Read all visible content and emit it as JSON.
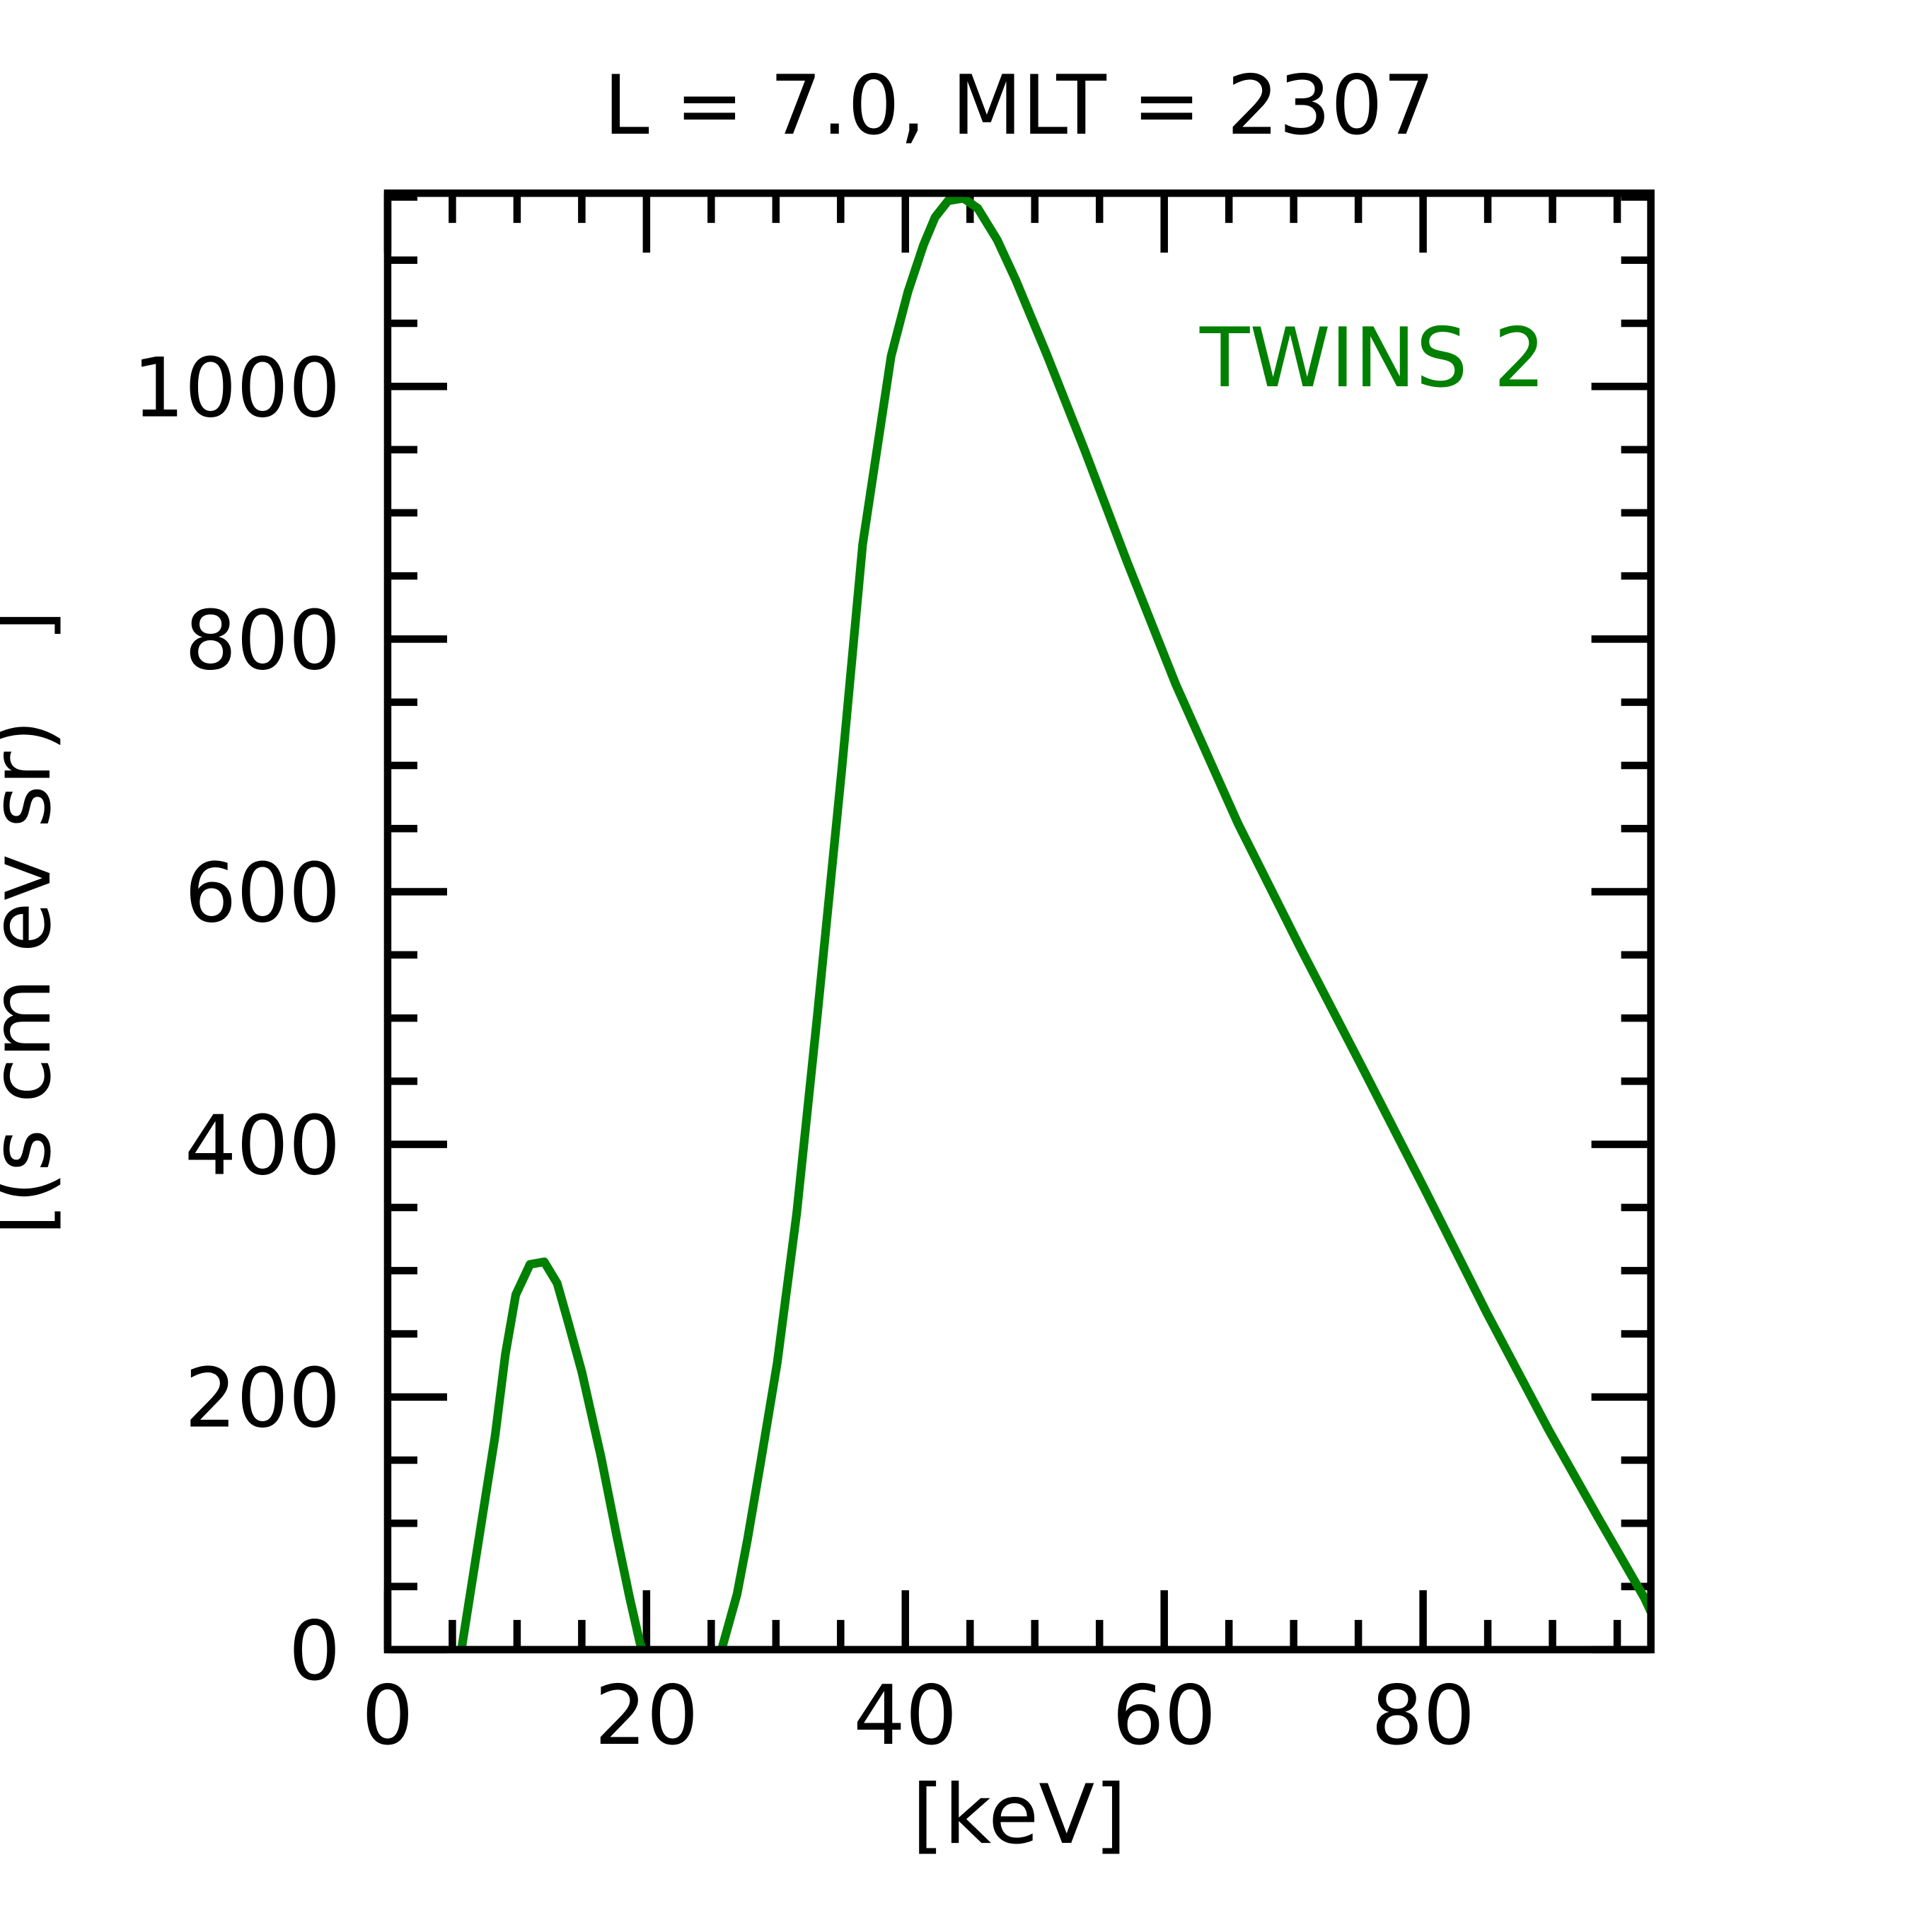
{
  "chart_data": {
    "type": "line",
    "title": "L =  7.0, MLT = 2307",
    "xlabel": "[keV]",
    "ylabel": "[(s cm ev sr)   ]",
    "xlim": [
      0,
      97.6
    ],
    "ylim": [
      0,
      1153
    ],
    "xticks": [
      0,
      20,
      40,
      60,
      80
    ],
    "xtick_labels": [
      "0",
      "20",
      "40",
      "60",
      "80"
    ],
    "yticks": [
      0,
      200,
      400,
      600,
      800,
      1000
    ],
    "ytick_labels": [
      "0",
      "200",
      "400",
      "600",
      "800",
      "1000"
    ],
    "x_minor_step": 5,
    "y_minor_step": 50,
    "grid": false,
    "legend_position": "top-right",
    "series": [
      {
        "name": "TWINS 2",
        "color": "#008000",
        "segments": [
          [
            [
              5.7,
              0
            ],
            [
              8.3,
              169
            ],
            [
              9.1,
              234
            ],
            [
              9.9,
              281
            ],
            [
              11.0,
              305
            ],
            [
              12.1,
              307
            ],
            [
              13.1,
              290
            ],
            [
              13.9,
              261
            ],
            [
              15.0,
              220
            ],
            [
              16.5,
              152
            ],
            [
              17.7,
              90
            ],
            [
              18.7,
              41
            ],
            [
              19.5,
              5
            ],
            [
              19.7,
              0
            ]
          ],
          [
            [
              25.8,
              0
            ],
            [
              27.0,
              44
            ],
            [
              27.8,
              87
            ],
            [
              28.8,
              147
            ],
            [
              30.1,
              227
            ],
            [
              31.6,
              345
            ],
            [
              33.2,
              502
            ],
            [
              35.1,
              698
            ],
            [
              36.7,
              875
            ],
            [
              38.0,
              963
            ],
            [
              38.9,
              1024
            ],
            [
              40.2,
              1075
            ],
            [
              41.4,
              1112
            ],
            [
              42.3,
              1134
            ],
            [
              43.3,
              1147
            ],
            [
              44.5,
              1149
            ],
            [
              45.6,
              1141
            ],
            [
              47.1,
              1116
            ],
            [
              48.5,
              1085
            ],
            [
              50.9,
              1026
            ],
            [
              53.8,
              951
            ],
            [
              57.1,
              862
            ],
            [
              60.9,
              764
            ],
            [
              65.7,
              654
            ],
            [
              70.5,
              556
            ],
            [
              75.3,
              461
            ],
            [
              80.1,
              365
            ],
            [
              84.9,
              267
            ],
            [
              89.7,
              174
            ],
            [
              93.5,
              105
            ],
            [
              97.1,
              41
            ],
            [
              97.6,
              30
            ]
          ]
        ]
      }
    ]
  }
}
